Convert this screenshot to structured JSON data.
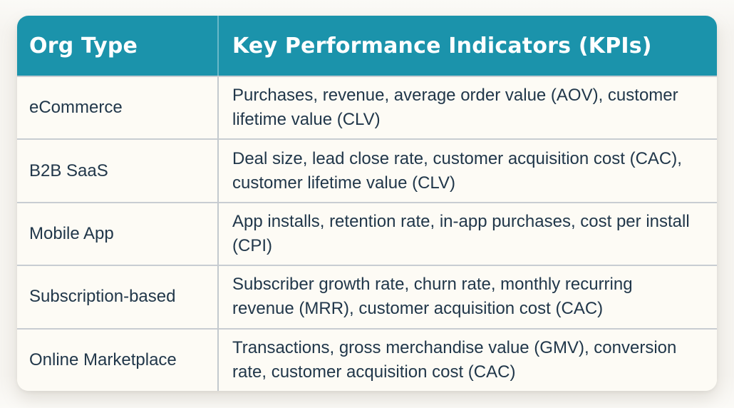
{
  "page": {
    "background_color": "#f7f5f1",
    "card_background": "#fdfbf5",
    "header_background": "#1b93ab",
    "header_text_color": "#ffffff",
    "body_text_color": "#21374a",
    "divider_color": "#c8cdd2"
  },
  "table": {
    "header": {
      "org_type": "Org Type",
      "kpis": "Key Performance Indicators (KPIs)"
    },
    "rows": [
      {
        "org_type": "eCommerce",
        "kpis": "Purchases, revenue, average order value (AOV), customer lifetime value (CLV)"
      },
      {
        "org_type": "B2B SaaS",
        "kpis": "Deal size, lead close rate, customer acquisition cost (CAC), customer lifetime value (CLV)"
      },
      {
        "org_type": "Mobile App",
        "kpis": "App installs, retention rate, in-app purchases, cost per install (CPI)"
      },
      {
        "org_type": "Subscription-based",
        "kpis": "Subscriber growth rate, churn rate, monthly recurring revenue (MRR), customer acquisition cost (CAC)"
      },
      {
        "org_type": "Online Marketplace",
        "kpis": "Transactions, gross merchandise value (GMV), conversion rate, customer acquisition cost (CAC)"
      }
    ]
  },
  "chart_data": {
    "type": "table",
    "title": "",
    "columns": [
      "Org Type",
      "Key Performance Indicators (KPIs)"
    ],
    "rows": [
      [
        "eCommerce",
        "Purchases, revenue, average order value (AOV), customer lifetime value (CLV)"
      ],
      [
        "B2B SaaS",
        "Deal size, lead close rate, customer acquisition cost (CAC), customer lifetime value (CLV)"
      ],
      [
        "Mobile App",
        "App installs, retention rate, in-app purchases, cost per install (CPI)"
      ],
      [
        "Subscription-based",
        "Subscriber growth rate, churn rate, monthly recurring revenue (MRR), customer acquisition cost (CAC)"
      ],
      [
        "Online Marketplace",
        "Transactions, gross merchandise value (GMV), conversion rate, customer acquisition cost (CAC)"
      ]
    ]
  }
}
